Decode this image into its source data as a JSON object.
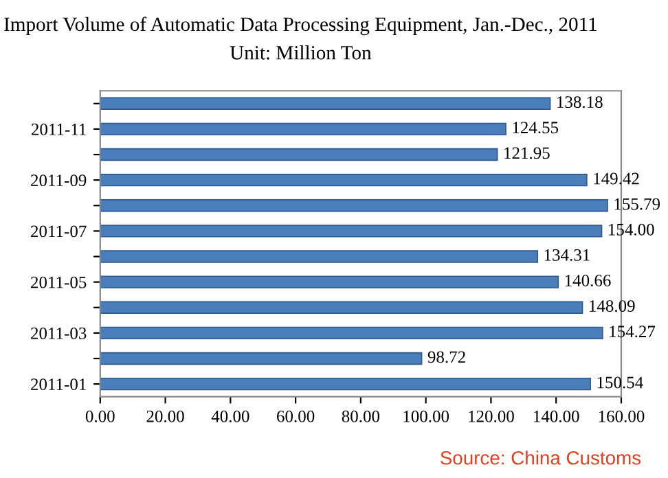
{
  "chart_data": {
    "type": "bar",
    "orientation": "horizontal",
    "title": "Import Volume of Automatic Data Processing Equipment, Jan.-Dec., 2011",
    "subtitle": "Unit: Million Ton",
    "categories": [
      null,
      "2011-11",
      null,
      "2011-09",
      null,
      "2011-07",
      null,
      "2011-05",
      null,
      "2011-03",
      null,
      "2011-01"
    ],
    "values": [
      138.18,
      124.55,
      121.95,
      149.42,
      155.79,
      154.0,
      134.31,
      140.66,
      148.09,
      154.27,
      98.72,
      150.54
    ],
    "value_labels": [
      "138.18",
      "124.55",
      "121.95",
      "149.42",
      "155.79",
      "154.00",
      "134.31",
      "140.66",
      "148.09",
      "154.27",
      "98.72",
      "150.54"
    ],
    "color": "#4a7ebb",
    "xlim": [
      0,
      160
    ],
    "xticks": [
      {
        "value": 0,
        "label": "0.00"
      },
      {
        "value": 20,
        "label": "20.00"
      },
      {
        "value": 40,
        "label": "40.00"
      },
      {
        "value": 60,
        "label": "60.00"
      },
      {
        "value": 80,
        "label": "80.00"
      },
      {
        "value": 100,
        "label": "100.00"
      },
      {
        "value": 120,
        "label": "120.00"
      },
      {
        "value": 140,
        "label": "140.00"
      },
      {
        "value": 160,
        "label": "160.00"
      }
    ],
    "annotations": [
      "Source: China Customs"
    ]
  }
}
